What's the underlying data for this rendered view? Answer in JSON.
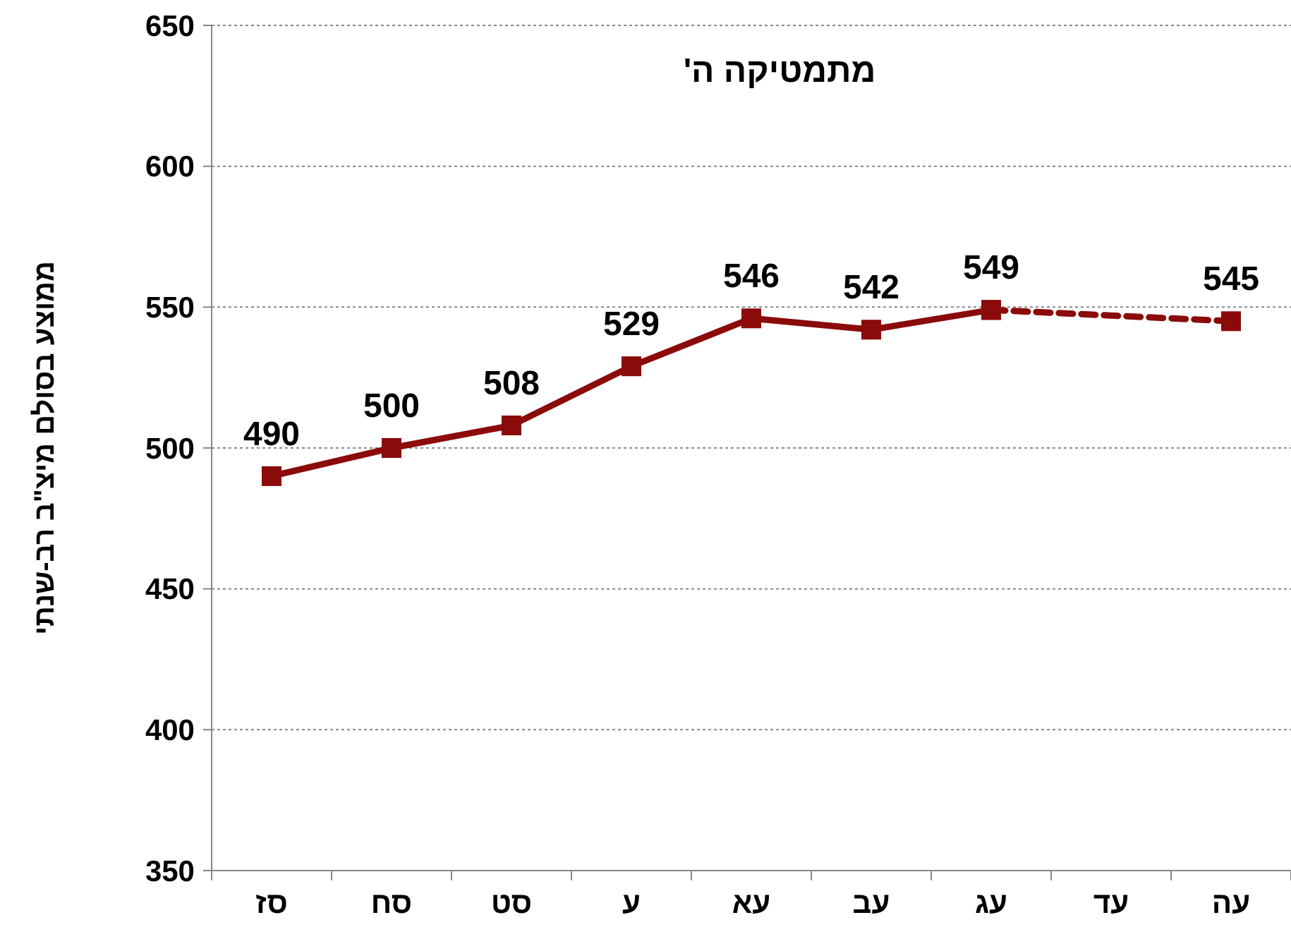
{
  "chart_data": {
    "type": "line",
    "title": "מתמטיקה ה'",
    "ylabel": "ממוצע בסולם מיצ\"ב רב-שנתי",
    "categories": [
      "סז",
      "סח",
      "סט",
      "ע",
      "עא",
      "עב",
      "עג",
      "עד",
      "עה"
    ],
    "series": [
      {
        "color": "#8b0a0a",
        "values": [
          490,
          500,
          508,
          529,
          546,
          542,
          549,
          null,
          null
        ],
        "line_style": "solid",
        "value_labels": [
          "490",
          "500",
          "508",
          "529",
          "546",
          "542",
          "549",
          null,
          null
        ]
      },
      {
        "color": "#8b0a0a",
        "values": [
          null,
          null,
          null,
          null,
          null,
          null,
          549,
          null,
          545
        ],
        "line_style": "dashed",
        "value_labels": [
          null,
          null,
          null,
          null,
          null,
          null,
          null,
          null,
          "545"
        ]
      }
    ],
    "ylim": [
      350,
      650
    ],
    "yticks": [
      350,
      400,
      450,
      500,
      550,
      600,
      650
    ],
    "grid": "y",
    "marker": "square"
  }
}
